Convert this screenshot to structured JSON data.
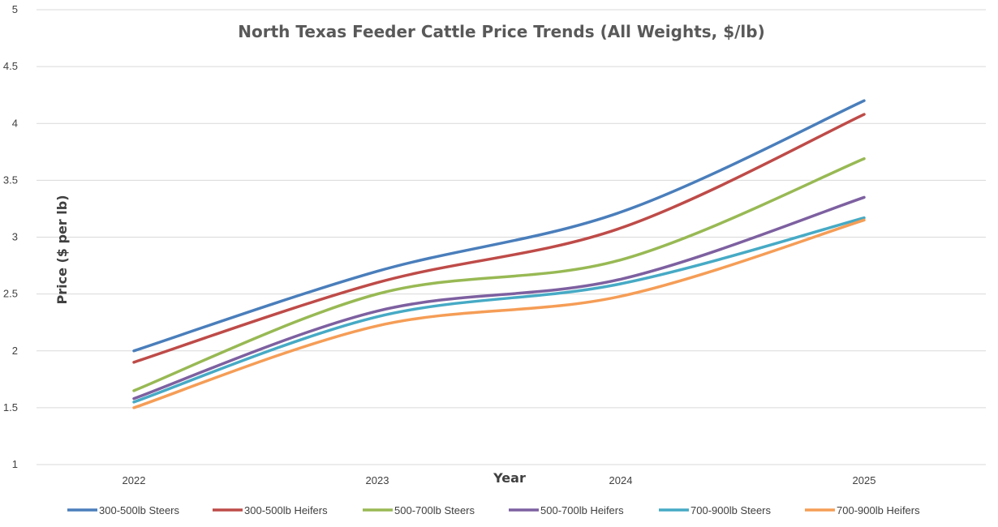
{
  "chart_data": {
    "type": "line",
    "title": "North Texas Feeder Cattle Price Trends (All Weights, $/lb)",
    "xlabel": "Year",
    "ylabel": "Price ($ per lb)",
    "categories": [
      "2022",
      "2023",
      "2024",
      "2025"
    ],
    "x": [
      2022,
      2023,
      2024,
      2025
    ],
    "xlim": [
      2021.6,
      2025.5
    ],
    "ylim": [
      1,
      5
    ],
    "yticks": [
      "1",
      "1.5",
      "2",
      "2.5",
      "3",
      "3.5",
      "4",
      "4.5",
      "5"
    ],
    "grid": true,
    "smooth": true,
    "legend_position": "bottom",
    "series": [
      {
        "name": "300-500lb Steers",
        "color": "#4a7ebb",
        "values": [
          2.0,
          2.7,
          3.22,
          4.2
        ]
      },
      {
        "name": "300-500lb Heifers",
        "color": "#be4b48",
        "values": [
          1.9,
          2.6,
          3.08,
          4.08
        ]
      },
      {
        "name": "500-700lb Steers",
        "color": "#98b954",
        "values": [
          1.65,
          2.5,
          2.8,
          3.69
        ]
      },
      {
        "name": "500-700lb Heifers",
        "color": "#7d60a0",
        "values": [
          1.58,
          2.35,
          2.63,
          3.35
        ]
      },
      {
        "name": "700-900lb Steers",
        "color": "#46aac5",
        "values": [
          1.55,
          2.3,
          2.59,
          3.17
        ]
      },
      {
        "name": "700-900lb Heifers",
        "color": "#f59d56",
        "values": [
          1.5,
          2.22,
          2.48,
          3.15
        ]
      }
    ]
  }
}
